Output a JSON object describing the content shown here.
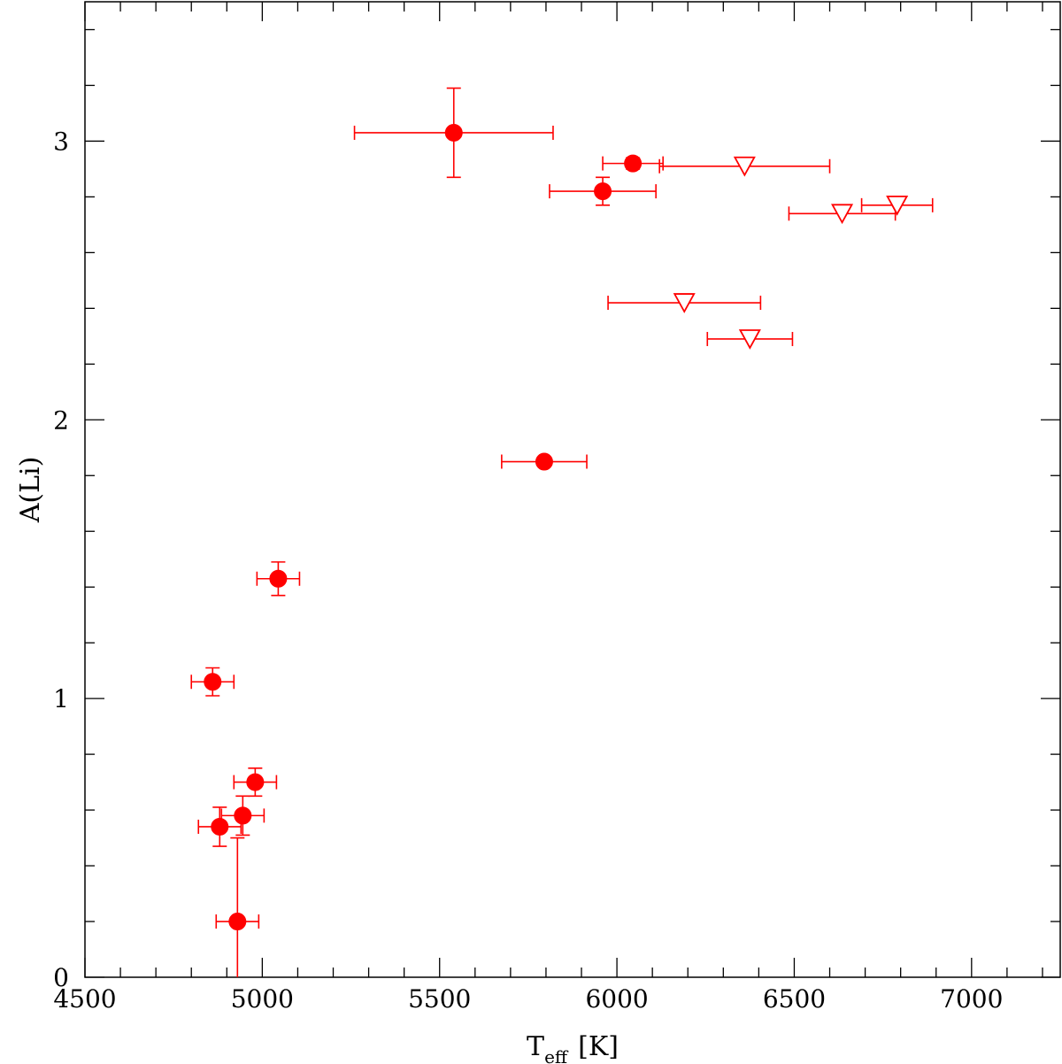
{
  "chart_data": {
    "type": "scatter",
    "title": "",
    "xlabel_main": "T",
    "xlabel_sub": "eff",
    "xlabel_unit": "[K]",
    "ylabel": "A(Li)",
    "xlim": [
      4500,
      7250
    ],
    "ylim": [
      0,
      3.5
    ],
    "x_ticks": [
      4500,
      5000,
      5500,
      6000,
      6500,
      7000
    ],
    "x_tick_labels": [
      "4500",
      "5000",
      "5500",
      "6000",
      "6500",
      "7000"
    ],
    "y_ticks": [
      0,
      1,
      2,
      3
    ],
    "y_tick_labels": [
      "0",
      "1",
      "2",
      "3"
    ],
    "x_minor_step": 100,
    "y_minor_step": 0.2,
    "grid": false,
    "color": "#ff0000",
    "series": [
      {
        "marker": "filled-circle",
        "points": [
          {
            "x": 5540,
            "y": 3.03,
            "xerr": 280,
            "yerr": 0.16
          },
          {
            "x": 6045,
            "y": 2.92,
            "xerr": 85,
            "yerr": 0.02
          },
          {
            "x": 5960,
            "y": 2.82,
            "xerr": 150,
            "yerr": 0.05
          },
          {
            "x": 5795,
            "y": 1.85,
            "xerr": 120,
            "yerr": 0.0
          },
          {
            "x": 5045,
            "y": 1.43,
            "xerr": 60,
            "yerr": 0.06
          },
          {
            "x": 4860,
            "y": 1.06,
            "xerr": 60,
            "yerr": 0.05
          },
          {
            "x": 4980,
            "y": 0.7,
            "xerr": 60,
            "yerr": 0.05
          },
          {
            "x": 4945,
            "y": 0.58,
            "xerr": 60,
            "yerr": 0.07
          },
          {
            "x": 4880,
            "y": 0.54,
            "xerr": 60,
            "yerr": 0.07
          },
          {
            "x": 4930,
            "y": 0.2,
            "xerr": 60,
            "yerr": 0.3
          }
        ]
      },
      {
        "marker": "open-triangle-down",
        "points": [
          {
            "x": 6360,
            "y": 2.91,
            "xerr": 240
          },
          {
            "x": 6635,
            "y": 2.74,
            "xerr": 150
          },
          {
            "x": 6790,
            "y": 2.77,
            "xerr": 100
          },
          {
            "x": 6190,
            "y": 2.42,
            "xerr": 215
          },
          {
            "x": 6375,
            "y": 2.29,
            "xerr": 120
          }
        ]
      }
    ]
  }
}
